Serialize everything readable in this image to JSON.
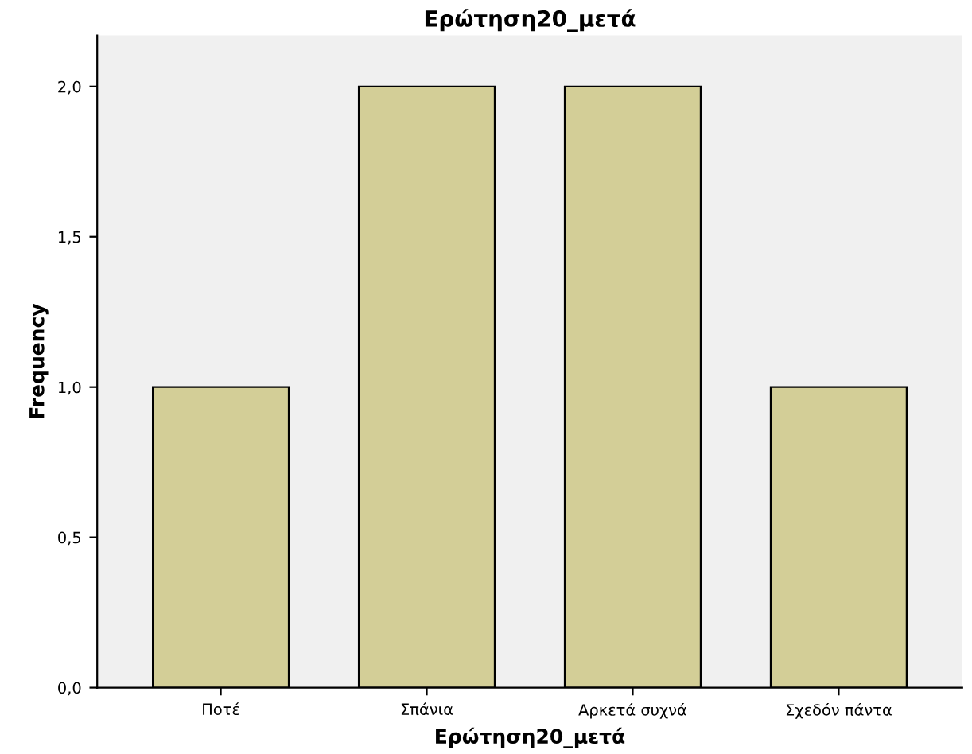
{
  "chart_data": {
    "type": "bar",
    "title": "Ερώτηση20_μετά",
    "xlabel": "Ερώτηση20_μετά",
    "ylabel": "Frequency",
    "categories": [
      "Ποτέ",
      "Σπάνια",
      "Αρκετά συχνά",
      "Σχεδόν πάντα"
    ],
    "values": [
      1,
      2,
      2,
      1
    ],
    "color": "#d3ce97",
    "ylim": [
      0,
      2.17
    ],
    "yticks": [
      {
        "value": 0,
        "label": "0,0"
      },
      {
        "value": 0.5,
        "label": "0,5"
      },
      {
        "value": 1,
        "label": "1,0"
      },
      {
        "value": 1.5,
        "label": "1,5"
      },
      {
        "value": 2,
        "label": "2,0"
      }
    ],
    "grid": false,
    "legend": false
  }
}
